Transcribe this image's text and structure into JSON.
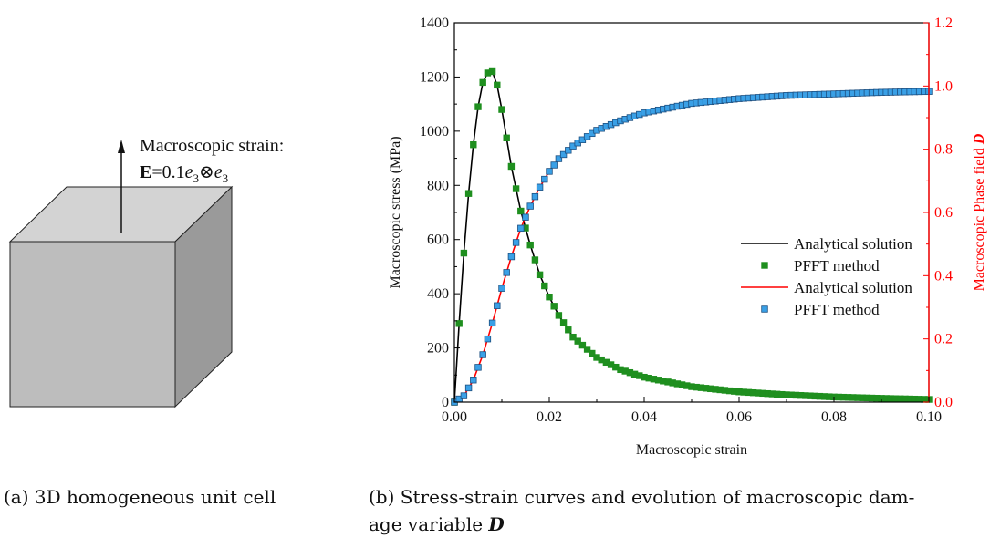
{
  "left_panel": {
    "strain_label": "Macroscopic strain:",
    "strain_formula": {
      "bold": "E",
      "text1": "=0.1",
      "e1": "e",
      "sub1": "3",
      "otimes": "⊗",
      "e2": "e",
      "sub2": "3"
    },
    "caption": "(a) 3D homogeneous unit cell"
  },
  "right_panel": {
    "caption_line1": "(b) Stress-strain curves and evolution of macroscopic dam-",
    "caption_line2_prefix": "age variable ",
    "caption_line2_var": "D"
  },
  "colors": {
    "stress_line": "#000000",
    "stress_marker": "#1f8f1f",
    "damage_line": "#ff0000",
    "damage_marker": "#3aa0e6",
    "right_axis": "#ff0000"
  },
  "chart_data": {
    "type": "line",
    "xlabel": "Macroscopic strain",
    "ylabel": "Macroscopic stress (MPa)",
    "y2label_prefix": "Macroscopic Phase field ",
    "y2label_var": "D",
    "xlim": [
      0,
      0.1
    ],
    "ylim": [
      0,
      1400
    ],
    "y2lim": [
      0,
      1.2
    ],
    "x_ticks": [
      "0.00",
      "0.02",
      "0.04",
      "0.06",
      "0.08",
      "0.10"
    ],
    "y_ticks": [
      "0",
      "200",
      "400",
      "600",
      "800",
      "1000",
      "1200",
      "1400"
    ],
    "y2_ticks": [
      "0.0",
      "0.2",
      "0.4",
      "0.6",
      "0.8",
      "1.0",
      "1.2"
    ],
    "legend_placement": "center-right",
    "legend": [
      {
        "label": "Analytical solution",
        "kind": "line",
        "series": "stress_analytical"
      },
      {
        "label": "PFFT method",
        "kind": "marker",
        "series": "stress_pfft"
      },
      {
        "label": "Analytical solution",
        "kind": "line",
        "series": "damage_analytical"
      },
      {
        "label": "PFFT method",
        "kind": "marker",
        "series": "damage_pfft"
      }
    ],
    "series": [
      {
        "name": "Analytical solution",
        "key": "stress_analytical",
        "axis": "left",
        "x": [
          0,
          0.001,
          0.002,
          0.003,
          0.004,
          0.005,
          0.006,
          0.007,
          0.008,
          0.009,
          0.01,
          0.012,
          0.014,
          0.016,
          0.018,
          0.02,
          0.022,
          0.025,
          0.03,
          0.035,
          0.04,
          0.05,
          0.06,
          0.07,
          0.08,
          0.09,
          0.1
        ],
        "y": [
          0,
          290,
          550,
          770,
          950,
          1090,
          1180,
          1215,
          1220,
          1170,
          1080,
          870,
          705,
          580,
          470,
          388,
          320,
          240,
          165,
          120,
          92,
          57,
          38,
          27,
          19,
          14,
          10
        ]
      },
      {
        "name": "PFFT method",
        "key": "stress_pfft",
        "axis": "left",
        "x": [
          0,
          0.001,
          0.002,
          0.003,
          0.004,
          0.005,
          0.006,
          0.007,
          0.008,
          0.009,
          0.01,
          0.012,
          0.014,
          0.016,
          0.018,
          0.02,
          0.022,
          0.025,
          0.03,
          0.035,
          0.04,
          0.05,
          0.06,
          0.07,
          0.08,
          0.09,
          0.1
        ],
        "y": [
          0,
          290,
          550,
          770,
          950,
          1090,
          1180,
          1215,
          1220,
          1170,
          1080,
          870,
          705,
          580,
          470,
          388,
          320,
          240,
          165,
          120,
          92,
          57,
          38,
          27,
          19,
          14,
          10
        ]
      },
      {
        "name": "Analytical solution",
        "key": "damage_analytical",
        "axis": "right",
        "x": [
          0,
          0.002,
          0.004,
          0.006,
          0.008,
          0.01,
          0.012,
          0.014,
          0.016,
          0.018,
          0.02,
          0.022,
          0.025,
          0.03,
          0.035,
          0.04,
          0.045,
          0.05,
          0.06,
          0.07,
          0.08,
          0.09,
          0.1
        ],
        "y": [
          0,
          0.02,
          0.07,
          0.15,
          0.25,
          0.36,
          0.46,
          0.55,
          0.62,
          0.68,
          0.73,
          0.77,
          0.81,
          0.86,
          0.89,
          0.915,
          0.93,
          0.945,
          0.96,
          0.97,
          0.975,
          0.98,
          0.983
        ]
      },
      {
        "name": "PFFT method",
        "key": "damage_pfft",
        "axis": "right",
        "x": [
          0,
          0.002,
          0.004,
          0.006,
          0.008,
          0.01,
          0.012,
          0.014,
          0.016,
          0.018,
          0.02,
          0.022,
          0.025,
          0.03,
          0.035,
          0.04,
          0.045,
          0.05,
          0.06,
          0.07,
          0.08,
          0.09,
          0.1
        ],
        "y": [
          0,
          0.02,
          0.07,
          0.15,
          0.25,
          0.36,
          0.46,
          0.55,
          0.62,
          0.68,
          0.73,
          0.77,
          0.81,
          0.86,
          0.89,
          0.915,
          0.93,
          0.945,
          0.96,
          0.97,
          0.975,
          0.98,
          0.983
        ]
      }
    ]
  }
}
